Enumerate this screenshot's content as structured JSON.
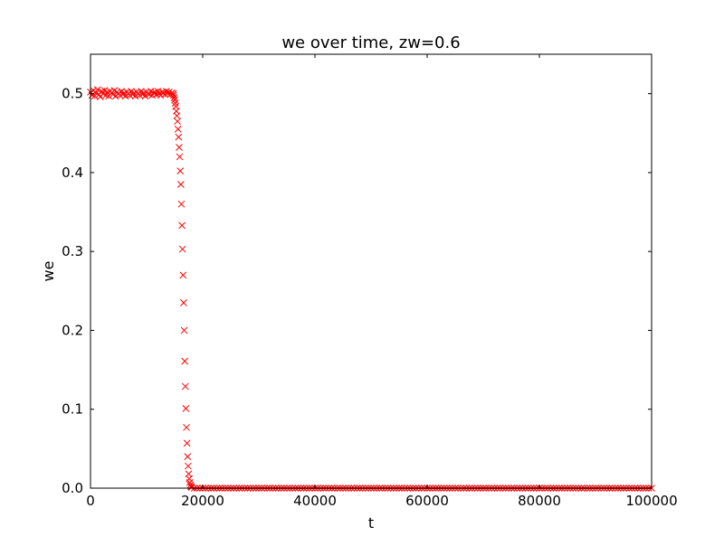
{
  "chart_data": {
    "type": "scatter",
    "title": "we over time, zw=0.6",
    "xlabel": "t",
    "ylabel": "we",
    "xlim": [
      0,
      100000
    ],
    "ylim": [
      0,
      0.55
    ],
    "xticks": [
      0,
      20000,
      40000,
      60000,
      80000,
      100000
    ],
    "xtick_labels": [
      "0",
      "20000",
      "40000",
      "60000",
      "80000",
      "100000"
    ],
    "yticks": [
      0,
      0.1,
      0.2,
      0.3,
      0.4,
      0.5
    ],
    "ytick_labels": [
      "0.0",
      "0.1",
      "0.2",
      "0.3",
      "0.4",
      "0.5"
    ],
    "grid": false,
    "marker": "x",
    "color": "#ff0000",
    "x": [
      0,
      250,
      500,
      750,
      1000,
      1250,
      1500,
      1750,
      2000,
      2250,
      2500,
      2750,
      3000,
      3250,
      3500,
      3750,
      4000,
      4250,
      4500,
      4750,
      5000,
      5250,
      5500,
      5750,
      6000,
      6250,
      6500,
      6750,
      7000,
      7250,
      7500,
      7750,
      8000,
      8250,
      8500,
      8750,
      9000,
      9250,
      9500,
      9750,
      10000,
      10250,
      10500,
      10750,
      11000,
      11250,
      11500,
      11750,
      12000,
      12250,
      12500,
      12750,
      13000,
      13250,
      13500,
      13750,
      14000,
      14250,
      14500,
      14750,
      14800,
      14900,
      15000,
      15100,
      15200,
      15300,
      15400,
      15500,
      15600,
      15700,
      15800,
      15900,
      16000,
      16100,
      16200,
      16300,
      16400,
      16500,
      16600,
      16700,
      16800,
      16900,
      17000,
      17100,
      17200,
      17300,
      17400,
      17500,
      17600,
      17700,
      17800,
      17900,
      18000,
      18500,
      19000,
      19500,
      20000,
      20500,
      21000,
      21500,
      22000,
      22500,
      23000,
      23500,
      24000,
      24500,
      25000,
      25500,
      26000,
      26500,
      27000,
      27500,
      28000,
      28500,
      29000,
      29500,
      30000,
      30500,
      31000,
      31500,
      32000,
      32500,
      33000,
      33500,
      34000,
      34500,
      35000,
      35500,
      36000,
      36500,
      37000,
      37500,
      38000,
      38500,
      39000,
      39500,
      40000,
      40500,
      41000,
      41500,
      42000,
      42500,
      43000,
      43500,
      44000,
      44500,
      45000,
      45500,
      46000,
      46500,
      47000,
      47500,
      48000,
      48500,
      49000,
      49500,
      50000,
      50500,
      51000,
      51500,
      52000,
      52500,
      53000,
      53500,
      54000,
      54500,
      55000,
      55500,
      56000,
      56500,
      57000,
      57500,
      58000,
      58500,
      59000,
      59500,
      60000,
      60500,
      61000,
      61500,
      62000,
      62500,
      63000,
      63500,
      64000,
      64500,
      65000,
      65500,
      66000,
      66500,
      67000,
      67500,
      68000,
      68500,
      69000,
      69500,
      70000,
      70500,
      71000,
      71500,
      72000,
      72500,
      73000,
      73500,
      74000,
      74500,
      75000,
      75500,
      76000,
      76500,
      77000,
      77500,
      78000,
      78500,
      79000,
      79500,
      80000,
      80500,
      81000,
      81500,
      82000,
      82500,
      83000,
      83500,
      84000,
      84500,
      85000,
      85500,
      86000,
      86500,
      87000,
      87500,
      88000,
      88500,
      89000,
      89500,
      90000,
      90500,
      91000,
      91500,
      92000,
      92500,
      93000,
      93500,
      94000,
      94500,
      95000,
      95500,
      96000,
      96500,
      97000,
      97500,
      98000,
      98500,
      99000,
      99500,
      100000
    ],
    "y": [
      0.502,
      0.498,
      0.504,
      0.497,
      0.501,
      0.505,
      0.499,
      0.496,
      0.503,
      0.5,
      0.504,
      0.498,
      0.502,
      0.497,
      0.503,
      0.501,
      0.499,
      0.504,
      0.497,
      0.502,
      0.5,
      0.498,
      0.503,
      0.499,
      0.501,
      0.497,
      0.502,
      0.5,
      0.498,
      0.503,
      0.499,
      0.501,
      0.497,
      0.502,
      0.5,
      0.498,
      0.503,
      0.499,
      0.501,
      0.497,
      0.502,
      0.5,
      0.499,
      0.503,
      0.498,
      0.501,
      0.502,
      0.499,
      0.503,
      0.5,
      0.498,
      0.502,
      0.501,
      0.499,
      0.503,
      0.5,
      0.502,
      0.499,
      0.501,
      0.5,
      0.498,
      0.495,
      0.492,
      0.488,
      0.484,
      0.478,
      0.472,
      0.465,
      0.455,
      0.445,
      0.432,
      0.42,
      0.402,
      0.385,
      0.36,
      0.333,
      0.303,
      0.27,
      0.235,
      0.2,
      0.161,
      0.129,
      0.101,
      0.077,
      0.057,
      0.04,
      0.028,
      0.018,
      0.012,
      0.007,
      0.004,
      0.002,
      0.001,
      0,
      0,
      0,
      0,
      0,
      0,
      0,
      0,
      0,
      0,
      0,
      0,
      0,
      0,
      0,
      0,
      0,
      0,
      0,
      0,
      0,
      0,
      0,
      0,
      0,
      0,
      0,
      0,
      0,
      0,
      0,
      0,
      0,
      0,
      0,
      0,
      0,
      0,
      0,
      0,
      0,
      0,
      0,
      0,
      0,
      0,
      0,
      0,
      0,
      0,
      0,
      0,
      0,
      0,
      0,
      0,
      0,
      0,
      0,
      0,
      0,
      0,
      0,
      0,
      0,
      0,
      0,
      0,
      0,
      0,
      0,
      0,
      0,
      0,
      0,
      0,
      0,
      0,
      0,
      0,
      0,
      0,
      0,
      0,
      0,
      0,
      0,
      0,
      0,
      0,
      0,
      0,
      0,
      0,
      0,
      0,
      0,
      0,
      0,
      0,
      0,
      0,
      0,
      0,
      0,
      0,
      0,
      0,
      0,
      0,
      0,
      0,
      0,
      0,
      0,
      0,
      0,
      0,
      0,
      0,
      0,
      0,
      0,
      0,
      0,
      0,
      0,
      0,
      0,
      0,
      0,
      0,
      0,
      0,
      0,
      0,
      0,
      0,
      0,
      0,
      0,
      0,
      0,
      0,
      0,
      0,
      0,
      0,
      0,
      0,
      0,
      0,
      0,
      0,
      0,
      0,
      0,
      0,
      0,
      0,
      0,
      0,
      0,
      0
    ]
  }
}
